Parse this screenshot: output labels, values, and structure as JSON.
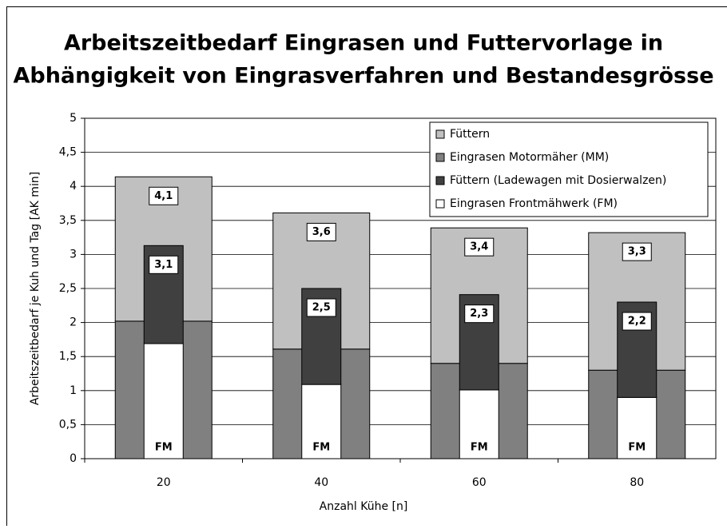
{
  "chart_data": {
    "type": "bar",
    "title": [
      "Arbeitszeitbedarf Eingrasen und Futtervorlage in",
      "Abhängigkeit von Eingrasverfahren und Bestandesgrösse"
    ],
    "xlabel": "Anzahl Kühe [n]",
    "ylabel": "Arbeitszeitbedarf je Kuh und Tag [AK min]",
    "categories": [
      "20",
      "40",
      "60",
      "80"
    ],
    "series": [
      {
        "name": "Eingrasen Motormäher (MM)",
        "color": "#808080",
        "stack": 0,
        "values": [
          2.02,
          1.61,
          1.4,
          1.3
        ]
      },
      {
        "name": "Füttern",
        "color": "#c0c0c0",
        "stack": 0,
        "values": [
          2.12,
          2.0,
          1.99,
          2.02
        ]
      },
      {
        "name": "Eingrasen Frontmähwerk (FM)",
        "color": "#ffffff",
        "stack": 1,
        "values": [
          1.69,
          1.09,
          1.01,
          0.9
        ]
      },
      {
        "name": "Füttern (Ladewagen mit Dosierwalzen)",
        "color": "#404040",
        "stack": 1,
        "values": [
          1.44,
          1.41,
          1.4,
          1.4
        ]
      }
    ],
    "stack_labels": [
      [
        "4,1",
        "3,6",
        "3,4",
        "3,3"
      ],
      [
        "3,1",
        "2,5",
        "2,3",
        "2,2"
      ]
    ],
    "bar_label": "FM",
    "ylim": [
      0,
      5
    ],
    "yticks": [
      0,
      {
        "value": 0.5,
        "label": "0,5"
      },
      1,
      {
        "value": 1.5,
        "label": "1,5"
      },
      2,
      {
        "value": 2.5,
        "label": "2,5"
      },
      3,
      {
        "value": 3.5,
        "label": "3,5"
      },
      4,
      {
        "value": 4.5,
        "label": "4,5"
      },
      5
    ],
    "grid": true,
    "legend": "upper right"
  }
}
